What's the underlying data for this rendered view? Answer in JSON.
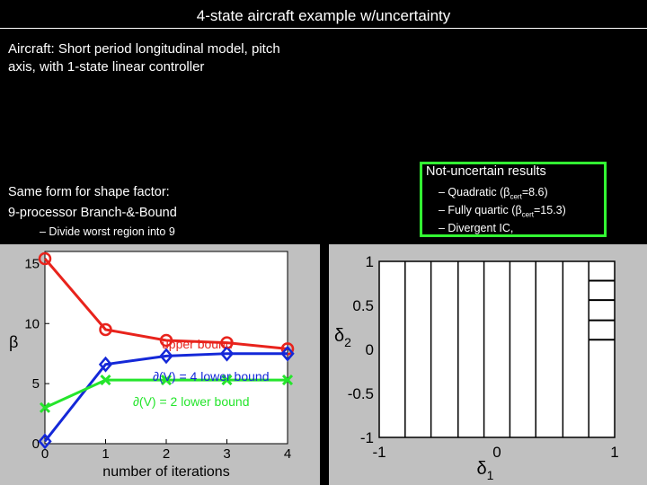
{
  "slide": {
    "title": "4-state aircraft example w/uncertainty",
    "intro_line1": "Aircraft: Short period longitudinal model, pitch",
    "intro_line2": "axis, with 1-state linear controller",
    "form_line1": "Same form for shape factor:",
    "form_line2": "9-processor Branch-&-Bound",
    "form_bullet": "– Divide worst region into 9"
  },
  "results_box": {
    "title": "Not-uncertain results",
    "items": [
      {
        "prefix": "– Quadratic (",
        "beta": "β",
        "sub": "cert",
        "suffix": "=8.6)"
      },
      {
        "prefix": "– Fully quartic (",
        "beta": "β",
        "sub": "cert",
        "suffix": "=15.3)"
      },
      {
        "prefix": "– Divergent IC,",
        "beta": "",
        "sub": "",
        "suffix": ""
      }
    ]
  },
  "colors": {
    "upper": "#e8231c",
    "lower4": "#1428d8",
    "lower2": "#25e52c",
    "accent_box": "#33ff33"
  },
  "chart_data": [
    {
      "type": "line",
      "xlabel": "number of iterations",
      "ylabel": "β",
      "x": [
        0,
        1,
        2,
        3,
        4
      ],
      "xlim": [
        0,
        4
      ],
      "ylim": [
        0,
        16
      ],
      "xticks": [
        "0",
        "1",
        "2",
        "3",
        "4"
      ],
      "yticks": [
        "0",
        "5",
        "10",
        "15"
      ],
      "series": [
        {
          "name": "upper bound",
          "values": [
            15.4,
            9.5,
            8.6,
            8.4,
            7.9
          ],
          "marker": "circle",
          "color": "#e8231c"
        },
        {
          "name": "∂(V) = 4 lower bound",
          "values": [
            0.2,
            6.6,
            7.3,
            7.5,
            7.5
          ],
          "marker": "diamond",
          "color": "#1428d8"
        },
        {
          "name": "∂(V) = 2 lower bound",
          "values": [
            3.0,
            5.3,
            5.3,
            5.3,
            5.3
          ],
          "marker": "x",
          "color": "#25e52c"
        }
      ],
      "grid": false
    },
    {
      "type": "other",
      "xlabel": "δ",
      "xlabel_sub": "1",
      "ylabel": "δ",
      "ylabel_sub": "2",
      "xlim": [
        -1,
        1
      ],
      "ylim": [
        -1,
        1
      ],
      "xticks": [
        "-1",
        "0",
        "1"
      ],
      "yticks": [
        "1",
        "0.5",
        "0",
        "-0.5",
        "-1"
      ],
      "vertical_dividers": [
        -0.78,
        -0.56,
        -0.33,
        -0.11,
        0.11,
        0.33,
        0.56,
        0.78
      ],
      "refined_cell_x": [
        0.78,
        1.0
      ],
      "refined_cell_lines_y": [
        0.78,
        0.56,
        0.33,
        0.11
      ]
    }
  ]
}
